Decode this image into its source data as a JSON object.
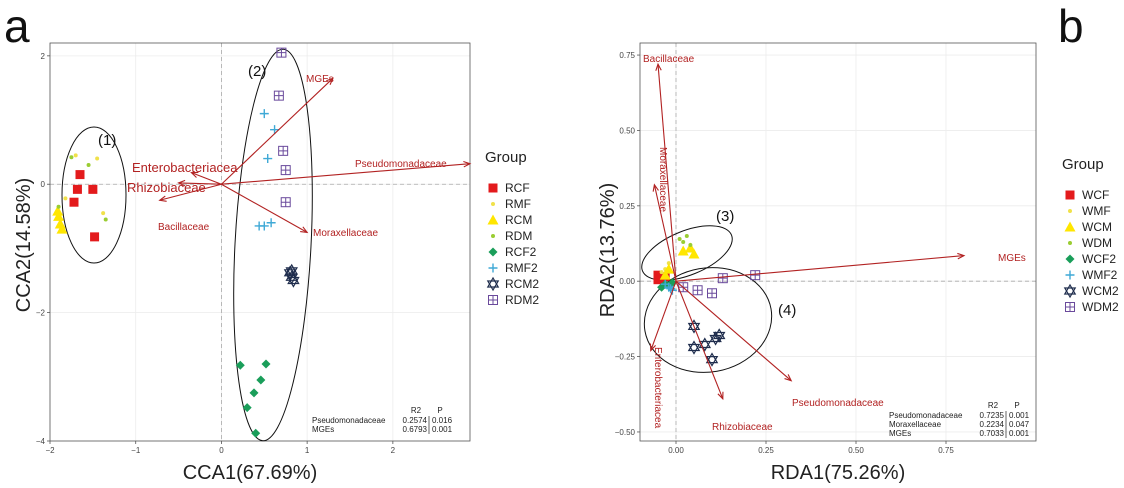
{
  "colors": {
    "arrow": "#b22222",
    "grid": "#ececec",
    "RCF": "#e31a1c",
    "RMF": "#f0e14a",
    "RCM": "#ffe600",
    "RDM": "#9acd32",
    "RCF2": "#1a9e5a",
    "RMF2": "#3fa9d6",
    "RCM2": "#1f2d4d",
    "RDM2": "#6a4a9c"
  },
  "chart_data": [
    {
      "panel": "a",
      "type": "scatter",
      "xlabel": "CCA1(67.69%)",
      "ylabel": "CCA2(14.58%)",
      "xlim": [
        -2.0,
        2.9
      ],
      "ylim": [
        -4.0,
        2.2
      ],
      "xticks": [
        -2,
        -1,
        0,
        1,
        2
      ],
      "yticks": [
        -4,
        -2,
        0,
        2
      ],
      "tick_labels_x": [
        "−2",
        "−1",
        "0",
        "1",
        "2"
      ],
      "tick_labels_y": [
        "−4",
        "−2",
        "0",
        "2"
      ],
      "legend_title": "Group",
      "legend": [
        "RCF",
        "RMF",
        "RCM",
        "RDM",
        "RCF2",
        "RMF2",
        "RCM2",
        "RDM2"
      ],
      "series": [
        {
          "name": "RCF",
          "marker": "square",
          "points": [
            [
              -1.65,
              0.15
            ],
            [
              -1.68,
              -0.08
            ],
            [
              -1.72,
              -0.28
            ],
            [
              -1.5,
              -0.08
            ],
            [
              -1.48,
              -0.82
            ]
          ]
        },
        {
          "name": "RMF",
          "marker": "dot",
          "points": [
            [
              -1.45,
              0.4
            ],
            [
              -1.38,
              -0.45
            ],
            [
              -1.82,
              -0.22
            ],
            [
              -1.7,
              0.45
            ]
          ]
        },
        {
          "name": "RCM",
          "marker": "triangle",
          "points": [
            [
              -1.9,
              -0.5
            ],
            [
              -1.88,
              -0.62
            ],
            [
              -1.86,
              -0.7
            ],
            [
              -1.91,
              -0.42
            ]
          ]
        },
        {
          "name": "RDM",
          "marker": "dot",
          "points": [
            [
              -1.75,
              0.42
            ],
            [
              -1.9,
              -0.35
            ],
            [
              -1.35,
              -0.55
            ],
            [
              -1.55,
              0.3
            ]
          ]
        },
        {
          "name": "RCF2",
          "marker": "diamond",
          "points": [
            [
              0.22,
              -2.82
            ],
            [
              0.52,
              -2.8
            ],
            [
              0.46,
              -3.05
            ],
            [
              0.38,
              -3.25
            ],
            [
              0.3,
              -3.48
            ],
            [
              0.4,
              -3.88
            ]
          ]
        },
        {
          "name": "RMF2",
          "marker": "plus",
          "points": [
            [
              0.5,
              1.1
            ],
            [
              0.54,
              0.4
            ],
            [
              0.62,
              0.85
            ],
            [
              0.5,
              -0.65
            ],
            [
              0.58,
              -0.6
            ],
            [
              0.44,
              -0.65
            ]
          ]
        },
        {
          "name": "RCM2",
          "marker": "star",
          "points": [
            [
              0.82,
              -1.35
            ],
            [
              0.82,
              -1.45
            ],
            [
              0.8,
              -1.38
            ],
            [
              0.84,
              -1.5
            ]
          ]
        },
        {
          "name": "RDM2",
          "marker": "boxcross",
          "points": [
            [
              0.7,
              2.05
            ],
            [
              0.67,
              1.38
            ],
            [
              0.72,
              0.52
            ],
            [
              0.75,
              0.22
            ],
            [
              0.75,
              -0.28
            ]
          ]
        }
      ],
      "arrows": [
        {
          "label": "MGEs",
          "end": [
            1.3,
            1.65
          ]
        },
        {
          "label": "Pseudomonadaceae",
          "end": [
            2.9,
            0.32
          ]
        },
        {
          "label": "Moraxellaceae",
          "end": [
            1.0,
            -0.75
          ]
        },
        {
          "label": "Enterobacteriacea",
          "end": [
            -0.35,
            0.18
          ]
        },
        {
          "label": "Rhizobiaceae",
          "end": [
            -0.5,
            0.02
          ]
        },
        {
          "label": "Bacillaceae",
          "end": [
            -0.72,
            -0.25
          ]
        }
      ],
      "cluster_labels": [
        "(1)",
        "(2)"
      ],
      "stats": {
        "headers": [
          "R2",
          "P"
        ],
        "rows": [
          {
            "name": "Pseudomonadaceae",
            "r2": "0.2574",
            "p": "0.016"
          },
          {
            "name": "MGEs",
            "r2": "0.6793",
            "p": "0.001"
          }
        ]
      }
    },
    {
      "panel": "b",
      "type": "scatter",
      "xlabel": "RDA1(75.26%)",
      "ylabel": "RDA2(13.76%)",
      "xlim": [
        -0.1,
        1.0
      ],
      "ylim": [
        -0.53,
        0.79
      ],
      "xticks": [
        0.0,
        0.25,
        0.5,
        0.75
      ],
      "yticks": [
        -0.5,
        -0.25,
        0.0,
        0.25,
        0.5,
        0.75
      ],
      "tick_labels_x": [
        "0.00",
        "0.25",
        "0.50",
        "0.75"
      ],
      "tick_labels_y": [
        "−0.50",
        "−0.25",
        "0.00",
        "0.25",
        "0.50",
        "0.75"
      ],
      "legend_title": "Group",
      "legend": [
        "WCF",
        "WMF",
        "WCM",
        "WDM",
        "WCF2",
        "WMF2",
        "WCM2",
        "WDM2"
      ],
      "series": [
        {
          "name": "WCF",
          "marker": "square",
          "points": [
            [
              -0.05,
              0.02
            ],
            [
              -0.04,
              0.01
            ],
            [
              -0.05,
              0.005
            ],
            [
              -0.03,
              0.015
            ]
          ]
        },
        {
          "name": "WMF",
          "marker": "dot",
          "points": [
            [
              -0.03,
              0.04
            ],
            [
              -0.02,
              0.06
            ],
            [
              -0.04,
              0.03
            ]
          ]
        },
        {
          "name": "WCM",
          "marker": "triangle",
          "points": [
            [
              0.02,
              0.1
            ],
            [
              0.04,
              0.11
            ],
            [
              0.05,
              0.09
            ],
            [
              -0.02,
              0.04
            ],
            [
              -0.03,
              0.02
            ]
          ]
        },
        {
          "name": "WDM",
          "marker": "dot",
          "points": [
            [
              0.01,
              0.14
            ],
            [
              0.03,
              0.15
            ],
            [
              0.04,
              0.12
            ],
            [
              0.02,
              0.13
            ]
          ]
        },
        {
          "name": "WCF2",
          "marker": "diamond",
          "points": [
            [
              -0.03,
              -0.01
            ],
            [
              -0.02,
              -0.015
            ],
            [
              -0.04,
              -0.02
            ],
            [
              -0.01,
              -0.005
            ]
          ]
        },
        {
          "name": "WMF2",
          "marker": "plus",
          "points": [
            [
              -0.02,
              -0.02
            ],
            [
              -0.01,
              -0.03
            ],
            [
              -0.03,
              -0.01
            ],
            [
              -0.015,
              -0.025
            ]
          ]
        },
        {
          "name": "WCM2",
          "marker": "star",
          "points": [
            [
              0.05,
              -0.15
            ],
            [
              0.08,
              -0.21
            ],
            [
              0.05,
              -0.22
            ],
            [
              0.11,
              -0.19
            ],
            [
              0.12,
              -0.18
            ],
            [
              0.1,
              -0.26
            ]
          ]
        },
        {
          "name": "WDM2",
          "marker": "boxcross",
          "points": [
            [
              0.22,
              0.02
            ],
            [
              0.13,
              0.01
            ],
            [
              0.1,
              -0.04
            ],
            [
              0.06,
              -0.03
            ],
            [
              0.02,
              -0.02
            ]
          ]
        }
      ],
      "arrows": [
        {
          "label": "MGEs",
          "end": [
            0.8,
            0.085
          ]
        },
        {
          "label": "Bacillaceae",
          "end": [
            -0.05,
            0.72
          ]
        },
        {
          "label": "Moraxellaceae",
          "end": [
            -0.06,
            0.32
          ]
        },
        {
          "label": "Enterobacteriacea",
          "end": [
            -0.07,
            -0.23
          ]
        },
        {
          "label": "Rhizobiaceae",
          "end": [
            0.13,
            -0.39
          ]
        },
        {
          "label": "Pseudomonadaceae",
          "end": [
            0.32,
            -0.33
          ]
        }
      ],
      "cluster_labels": [
        "(3)",
        "(4)"
      ],
      "stats": {
        "headers": [
          "R2",
          "P"
        ],
        "rows": [
          {
            "name": "Pseudomonadaceae",
            "r2": "0.7235",
            "p": "0.001"
          },
          {
            "name": "Moraxellaceae",
            "r2": "0.2234",
            "p": "0.047"
          },
          {
            "name": "MGEs",
            "r2": "0.7033",
            "p": "0.001"
          }
        ]
      }
    }
  ]
}
